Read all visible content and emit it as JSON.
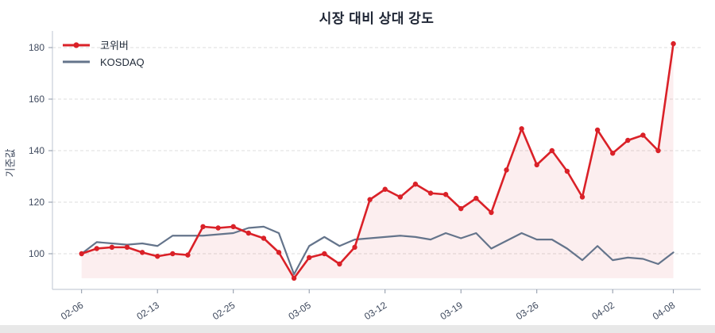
{
  "figure": {
    "title": "시장 대비 상대 강도",
    "y_axis_label": "기준값"
  },
  "colors": {
    "series_primary": "#da2128",
    "series_benchmark": "#64748b",
    "title_text": "#1d2433",
    "tick_text": "#3f4a5e",
    "legend_text": "#1f2937",
    "gridline": "#dcdcdc",
    "spine": "#c7ced8",
    "plot_background": "#ffffff",
    "page_background": "#e8e8e8"
  },
  "chart_data": {
    "type": "line",
    "title": "시장 대비 상대 강도",
    "xlabel": "",
    "ylabel": "기준값",
    "ylim": [
      86,
      186.5
    ],
    "y_ticks": [
      100,
      120,
      140,
      160,
      180
    ],
    "x_tick_labels": [
      "02-06",
      "02-13",
      "02-25",
      "03-05",
      "03-12",
      "03-19",
      "03-26",
      "04-02",
      "04-08"
    ],
    "x_tick_indices": [
      0,
      5,
      10,
      15,
      20,
      25,
      30,
      35,
      39
    ],
    "num_points": 40,
    "grid": {
      "horizontal": true,
      "style": "dashed"
    },
    "legend_position": "top-left",
    "series": [
      {
        "name": "코위버",
        "color": "#da2128",
        "marker": "circle",
        "area_fill": true,
        "values": [
          100,
          102,
          102.5,
          102.5,
          100.5,
          99,
          100,
          99.5,
          110.5,
          110,
          110.5,
          108,
          106,
          100.5,
          90.5,
          98.5,
          100,
          96,
          102.5,
          121,
          125,
          122,
          127,
          123.5,
          123,
          117.5,
          121.5,
          116,
          132.5,
          148.5,
          134.5,
          140,
          132,
          122,
          148,
          139,
          144,
          146,
          140,
          181.5
        ]
      },
      {
        "name": "KOSDAQ",
        "color": "#64748b",
        "marker": "none",
        "area_fill": false,
        "values": [
          100,
          104.5,
          104,
          103.5,
          104,
          103,
          107,
          107,
          107,
          107.5,
          108,
          110,
          110.5,
          108,
          92,
          103,
          106.5,
          103,
          105.5,
          106,
          106.5,
          107,
          106.5,
          105.5,
          108,
          106,
          108,
          102,
          105,
          108,
          105.5,
          105.5,
          102,
          97.5,
          103,
          97.5,
          98.5,
          98,
          96,
          100.5
        ]
      }
    ]
  }
}
